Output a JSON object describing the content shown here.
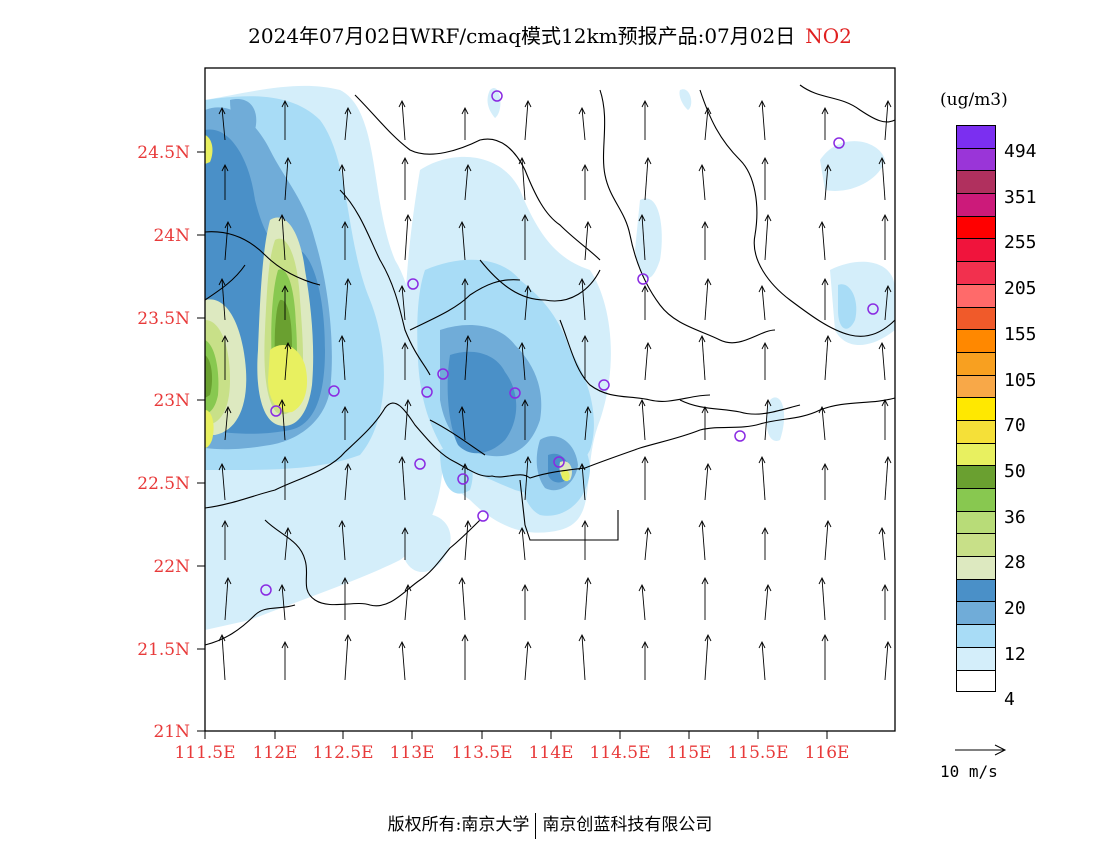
{
  "header": {
    "title": "2024年07月02日WRF/cmaq模式12km预报产品:07月02日",
    "pollutant": "NO2"
  },
  "map": {
    "lat_labels": [
      "24.5N",
      "24N",
      "23.5N",
      "23N",
      "22.5N",
      "22N",
      "21.5N",
      "21N"
    ],
    "lon_labels": [
      "111.5E",
      "112E",
      "112.5E",
      "113E",
      "113.5E",
      "114E",
      "114.5E",
      "115E",
      "115.5E",
      "116E"
    ],
    "axis_label_color": "#e83a3a"
  },
  "legend": {
    "unit": "(ug/m3)",
    "colors": [
      "#7b2ff0",
      "#9a35d8",
      "#b0305e",
      "#cc1a7a",
      "#ff0000",
      "#f0143c",
      "#f2304e",
      "#ff6a6a",
      "#f05a2a",
      "#ff8800",
      "#f8a020",
      "#f8a848",
      "#ffe800",
      "#f5e038",
      "#e8f060",
      "#6aa030",
      "#88c850",
      "#b8dc78",
      "#c8e088",
      "#dde9c0",
      "#4a90c8",
      "#70acd8",
      "#a8dcf6",
      "#d4eefa",
      "#ffffff"
    ],
    "labels": [
      "494",
      "351",
      "255",
      "205",
      "155",
      "105",
      "70",
      "50",
      "36",
      "28",
      "20",
      "12",
      "4"
    ]
  },
  "wind_reference": {
    "label": "10 m/s"
  },
  "footer": {
    "left": "版权所有:南京大学",
    "right": "南京创蓝科技有限公司"
  }
}
